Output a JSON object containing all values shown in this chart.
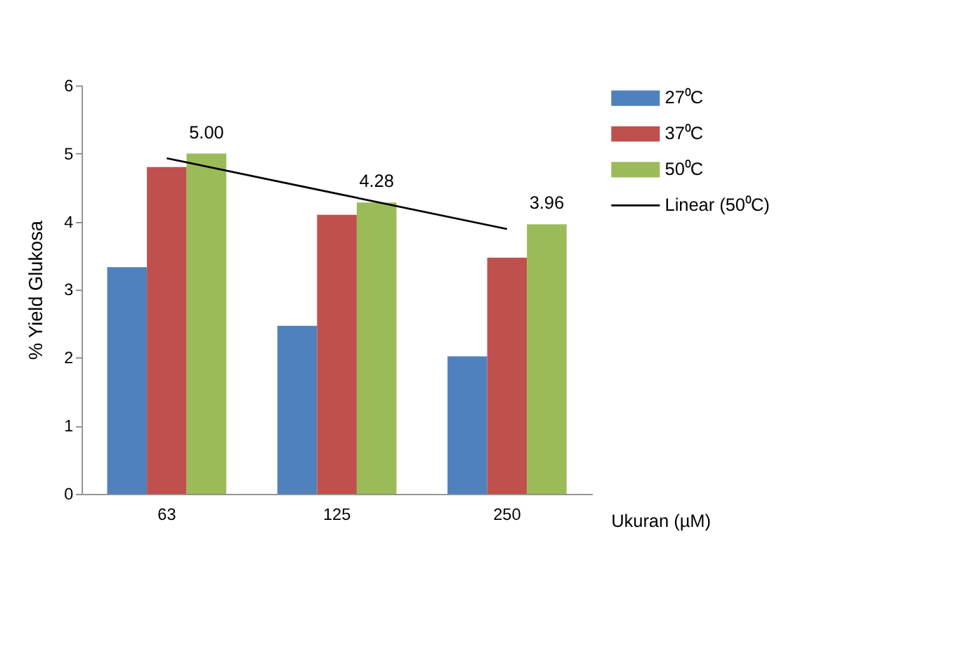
{
  "chart_data": {
    "type": "bar",
    "xlabel": "Ukuran (µM)",
    "ylabel": "% Yield Glukosa",
    "categories": [
      "63",
      "125",
      "250"
    ],
    "series": [
      {
        "name": "27⁰C",
        "color": "#4f81bd",
        "values": [
          3.33,
          2.47,
          2.02
        ]
      },
      {
        "name": "37⁰C",
        "color": "#c0504d",
        "values": [
          4.8,
          4.1,
          3.47
        ]
      },
      {
        "name": "50⁰C",
        "color": "#9bbb59",
        "values": [
          5.0,
          4.28,
          3.96
        ],
        "value_labels": [
          "5.00",
          "4.28",
          "3.96"
        ]
      },
      {
        "name": "Linear (50⁰C)",
        "type": "line",
        "color": "#000000",
        "values": [
          4.93,
          4.41,
          3.89
        ]
      }
    ],
    "ylim": [
      0,
      6
    ],
    "yticks": [
      0,
      1,
      2,
      3,
      4,
      5,
      6
    ],
    "grid": false,
    "legend": "top right"
  }
}
